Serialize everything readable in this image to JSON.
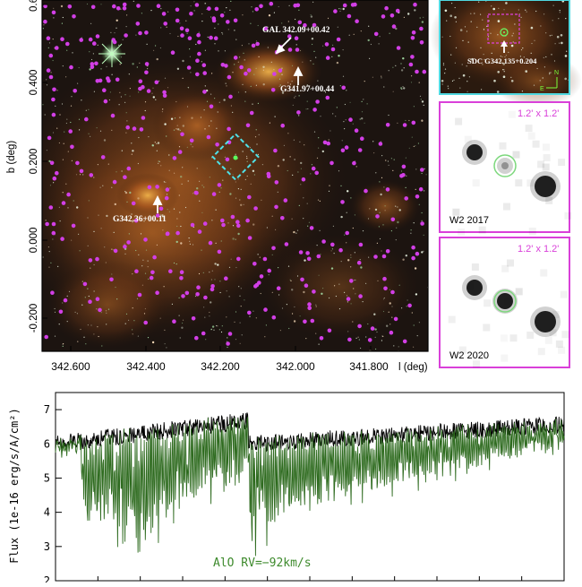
{
  "main_map": {
    "ylabel": "b (deg)",
    "xlabel": "l (deg)",
    "x_ticks": [
      "342.600",
      "342.400",
      "342.200",
      "342.000",
      "341.800"
    ],
    "y_ticks": [
      "0.6",
      "0.400",
      "0.200",
      "0.000",
      "-0.200"
    ],
    "annotations": [
      {
        "text": "GAL 342.09+00.42"
      },
      {
        "text": "G341.97+00.44"
      },
      {
        "text": "G342.36+00.11"
      }
    ]
  },
  "inset_large": {
    "label": "SDC G342.135+0.204",
    "compass_n": "N",
    "compass_e": "E"
  },
  "panel_2017": {
    "size_label": "1.2' x 1.2'",
    "band_label": "W2 2017"
  },
  "panel_2020": {
    "size_label": "1.2' x 1.2'",
    "band_label": "W2 2020"
  },
  "chart_data": {
    "type": "line",
    "title": "",
    "ylabel": "Flux (1e-16 erg/s/A/cm²)",
    "xlabel": "",
    "ylim": [
      2,
      7.5
    ],
    "y_ticks": [
      2,
      3,
      4,
      5,
      6,
      7
    ],
    "grid": false,
    "annotation": "AlO RV=−92km/s",
    "series": [
      {
        "color": "#000000"
      },
      {
        "color": "#2e6b1f"
      }
    ],
    "features": [
      {
        "x": 0.03,
        "y": 6.1
      },
      {
        "x": 0.08,
        "y": 4.5
      },
      {
        "x": 0.18,
        "y": 3.2
      },
      {
        "x": 0.22,
        "y": 4.8
      },
      {
        "x": 0.36,
        "y": 6.7
      },
      {
        "x": 0.38,
        "y": 3.3
      },
      {
        "x": 0.4,
        "y": 5.0
      },
      {
        "x": 0.55,
        "y": 6.5
      },
      {
        "x": 0.7,
        "y": 6.8
      },
      {
        "x": 0.85,
        "y": 6.6
      },
      {
        "x": 1.0,
        "y": 6.0
      }
    ]
  }
}
